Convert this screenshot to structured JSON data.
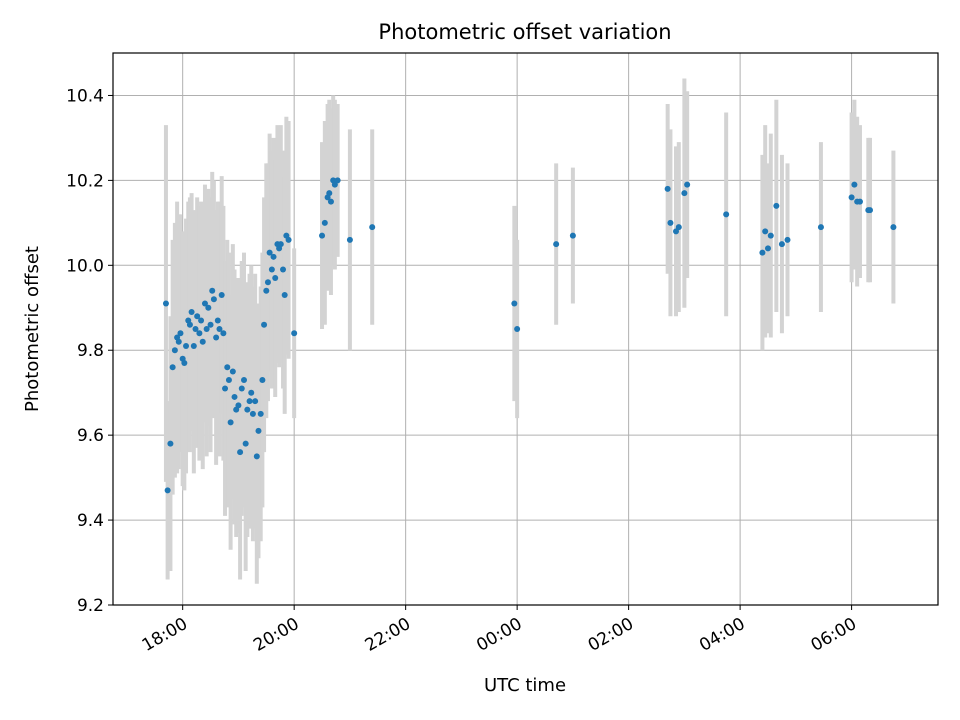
{
  "chart_data": {
    "type": "scatter",
    "title": "Photometric offset variation",
    "xlabel": "UTC time",
    "ylabel": "Photometric offset",
    "x_unit": "hours since 00:00 UTC of first night (values > 24 are after midnight)",
    "xlim": [
      16.75,
      31.55
    ],
    "ylim": [
      9.2,
      10.5
    ],
    "x_ticks": [
      {
        "value": 18,
        "label": "18:00"
      },
      {
        "value": 20,
        "label": "20:00"
      },
      {
        "value": 22,
        "label": "22:00"
      },
      {
        "value": 24,
        "label": "00:00"
      },
      {
        "value": 26,
        "label": "02:00"
      },
      {
        "value": 28,
        "label": "04:00"
      },
      {
        "value": 30,
        "label": "06:00"
      }
    ],
    "y_ticks": [
      {
        "value": 9.2,
        "label": "9.2"
      },
      {
        "value": 9.4,
        "label": "9.4"
      },
      {
        "value": 9.6,
        "label": "9.6"
      },
      {
        "value": 9.8,
        "label": "9.8"
      },
      {
        "value": 10.0,
        "label": "10.0"
      },
      {
        "value": 10.2,
        "label": "10.2"
      },
      {
        "value": 10.4,
        "label": "10.4"
      }
    ],
    "grid": true,
    "colors": {
      "point": "#1f77b4",
      "errorbar": "#d3d3d3",
      "grid": "#b0b0b0"
    },
    "points": [
      [
        17.7,
        9.91,
        0.42
      ],
      [
        17.73,
        9.47,
        0.21
      ],
      [
        17.78,
        9.58,
        0.3
      ],
      [
        17.82,
        9.76,
        0.3
      ],
      [
        17.86,
        9.8,
        0.3
      ],
      [
        17.9,
        9.83,
        0.32
      ],
      [
        17.93,
        9.82,
        0.3
      ],
      [
        17.96,
        9.84,
        0.28
      ],
      [
        18.0,
        9.78,
        0.3
      ],
      [
        18.03,
        9.77,
        0.3
      ],
      [
        18.06,
        9.81,
        0.3
      ],
      [
        18.1,
        9.87,
        0.28
      ],
      [
        18.13,
        9.86,
        0.3
      ],
      [
        18.16,
        9.89,
        0.28
      ],
      [
        18.2,
        9.81,
        0.3
      ],
      [
        18.23,
        9.85,
        0.28
      ],
      [
        18.26,
        9.88,
        0.28
      ],
      [
        18.3,
        9.84,
        0.3
      ],
      [
        18.33,
        9.87,
        0.28
      ],
      [
        18.36,
        9.82,
        0.3
      ],
      [
        18.4,
        9.91,
        0.28
      ],
      [
        18.43,
        9.85,
        0.3
      ],
      [
        18.46,
        9.9,
        0.28
      ],
      [
        18.5,
        9.86,
        0.3
      ],
      [
        18.53,
        9.94,
        0.28
      ],
      [
        18.56,
        9.92,
        0.28
      ],
      [
        18.6,
        9.83,
        0.3
      ],
      [
        18.63,
        9.87,
        0.28
      ],
      [
        18.66,
        9.85,
        0.3
      ],
      [
        18.7,
        9.93,
        0.28
      ],
      [
        18.73,
        9.84,
        0.3
      ],
      [
        18.76,
        9.71,
        0.3
      ],
      [
        18.8,
        9.76,
        0.3
      ],
      [
        18.83,
        9.73,
        0.3
      ],
      [
        18.86,
        9.63,
        0.3
      ],
      [
        18.9,
        9.75,
        0.3
      ],
      [
        18.93,
        9.69,
        0.3
      ],
      [
        18.96,
        9.66,
        0.3
      ],
      [
        19.0,
        9.67,
        0.3
      ],
      [
        19.03,
        9.56,
        0.3
      ],
      [
        19.06,
        9.71,
        0.3
      ],
      [
        19.1,
        9.73,
        0.3
      ],
      [
        19.13,
        9.58,
        0.3
      ],
      [
        19.16,
        9.66,
        0.3
      ],
      [
        19.2,
        9.68,
        0.3
      ],
      [
        19.23,
        9.7,
        0.3
      ],
      [
        19.26,
        9.65,
        0.3
      ],
      [
        19.3,
        9.68,
        0.3
      ],
      [
        19.33,
        9.55,
        0.3
      ],
      [
        19.36,
        9.61,
        0.3
      ],
      [
        19.4,
        9.65,
        0.3
      ],
      [
        19.43,
        9.73,
        0.3
      ],
      [
        19.46,
        9.86,
        0.3
      ],
      [
        19.5,
        9.94,
        0.3
      ],
      [
        19.53,
        9.96,
        0.28
      ],
      [
        19.56,
        10.03,
        0.28
      ],
      [
        19.6,
        9.99,
        0.28
      ],
      [
        19.63,
        10.02,
        0.28
      ],
      [
        19.66,
        9.97,
        0.28
      ],
      [
        19.7,
        10.05,
        0.28
      ],
      [
        19.73,
        10.04,
        0.28
      ],
      [
        19.76,
        10.05,
        0.28
      ],
      [
        19.8,
        9.99,
        0.28
      ],
      [
        19.83,
        9.93,
        0.28
      ],
      [
        19.86,
        10.07,
        0.28
      ],
      [
        19.9,
        10.06,
        0.28
      ],
      [
        20.0,
        9.84,
        0.2
      ],
      [
        20.5,
        10.07,
        0.22
      ],
      [
        20.55,
        10.1,
        0.24
      ],
      [
        20.6,
        10.16,
        0.22
      ],
      [
        20.63,
        10.17,
        0.22
      ],
      [
        20.66,
        10.15,
        0.22
      ],
      [
        20.7,
        10.2,
        0.2
      ],
      [
        20.73,
        10.19,
        0.2
      ],
      [
        20.78,
        10.2,
        0.18
      ],
      [
        21.0,
        10.06,
        0.26
      ],
      [
        21.4,
        10.09,
        0.23
      ],
      [
        23.95,
        9.91,
        0.23
      ],
      [
        24.0,
        9.85,
        0.21
      ],
      [
        24.7,
        10.05,
        0.19
      ],
      [
        25.0,
        10.07,
        0.16
      ],
      [
        26.7,
        10.18,
        0.2
      ],
      [
        26.75,
        10.1,
        0.22
      ],
      [
        26.85,
        10.08,
        0.2
      ],
      [
        26.9,
        10.09,
        0.2
      ],
      [
        27.0,
        10.17,
        0.27
      ],
      [
        27.05,
        10.19,
        0.22
      ],
      [
        27.75,
        10.12,
        0.24
      ],
      [
        28.4,
        10.03,
        0.23
      ],
      [
        28.45,
        10.08,
        0.25
      ],
      [
        28.5,
        10.04,
        0.2
      ],
      [
        28.55,
        10.07,
        0.24
      ],
      [
        28.65,
        10.14,
        0.25
      ],
      [
        28.75,
        10.05,
        0.21
      ],
      [
        28.85,
        10.06,
        0.18
      ],
      [
        29.45,
        10.09,
        0.2
      ],
      [
        30.0,
        10.16,
        0.2
      ],
      [
        30.05,
        10.19,
        0.2
      ],
      [
        30.1,
        10.15,
        0.2
      ],
      [
        30.15,
        10.15,
        0.18
      ],
      [
        30.3,
        10.13,
        0.17
      ],
      [
        30.33,
        10.13,
        0.17
      ],
      [
        30.75,
        10.09,
        0.18
      ]
    ]
  }
}
